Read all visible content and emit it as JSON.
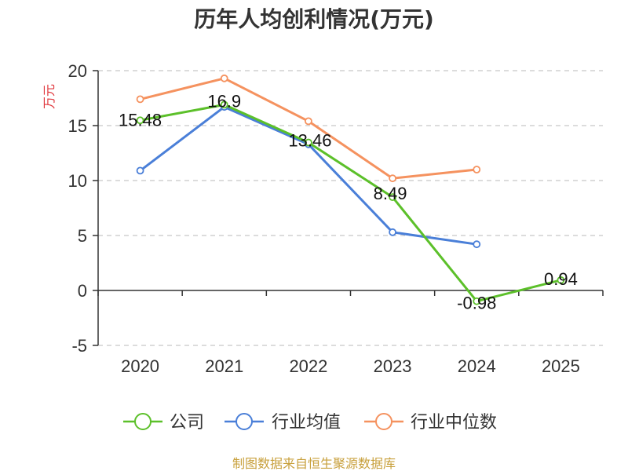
{
  "chart_data": {
    "type": "line",
    "title": "历年人均创利情况(万元)",
    "ylabel": "万元",
    "x": [
      "2020",
      "2021",
      "2022",
      "2023",
      "2024",
      "2025"
    ],
    "ylim": [
      -5,
      20
    ],
    "yticks": [
      -5,
      0,
      5,
      10,
      15,
      20
    ],
    "grid": true,
    "legend_position": "bottom",
    "series": [
      {
        "name": "公司",
        "color": "#5cc02a",
        "values": [
          15.48,
          16.9,
          13.46,
          8.49,
          -0.98,
          0.94
        ],
        "labels": [
          "15.48",
          "16.9",
          "13.46",
          "8.49",
          "-0.98",
          "0.94"
        ]
      },
      {
        "name": "行业均值",
        "color": "#4a7fd8",
        "values": [
          10.9,
          16.7,
          13.3,
          5.3,
          4.2,
          null
        ]
      },
      {
        "name": "行业中位数",
        "color": "#f5925f",
        "values": [
          17.4,
          19.3,
          15.4,
          10.2,
          11.0,
          null
        ]
      }
    ]
  },
  "source": "制图数据来自恒生聚源数据库"
}
